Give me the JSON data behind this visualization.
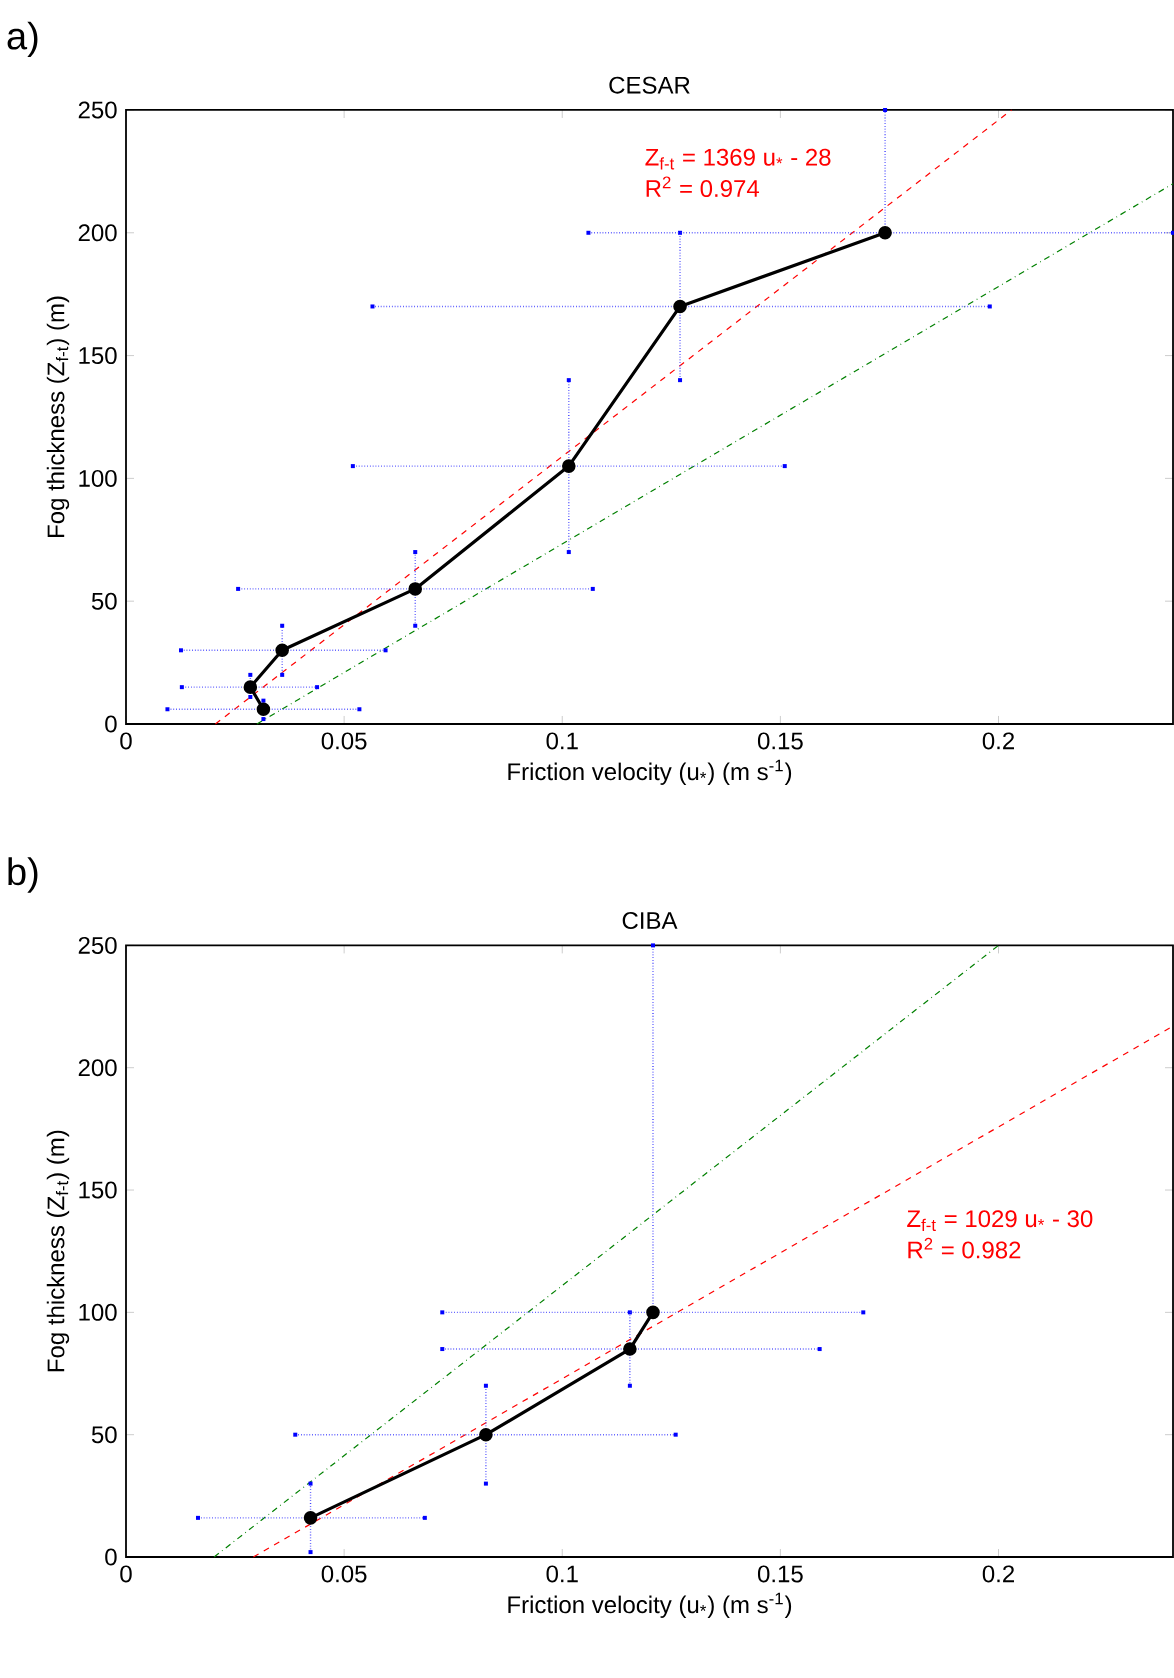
{
  "chart_data": [
    {
      "type": "line",
      "title": "CESAR",
      "xlabel": "Friction velocity (u$_{*}$) (m s$^{-1}$)",
      "ylabel": "Fog thickness (Z$_{f-t}$) (m)",
      "xlim": [
        0,
        0.24
      ],
      "ylim": [
        0,
        250
      ],
      "xticks": [
        0,
        0.05,
        0.1,
        0.15,
        0.2
      ],
      "yticks": [
        0,
        50,
        100,
        150,
        200,
        250
      ],
      "annotations": [
        "a)",
        "Z$_{f-t}$ = 1369 u$_{*}$ - 28",
        "R$^{2}$ = 0.974"
      ],
      "series": [
        {
          "color": "#ff0000",
          "line_style": "dashed",
          "marker": "none",
          "x": [
            0.0205,
            0.203
          ],
          "values": [
            0,
            250
          ]
        },
        {
          "color": "#008000",
          "line_style": "dashdot",
          "marker": "none",
          "x": [
            0.03,
            0.24
          ],
          "values": [
            0,
            220
          ]
        },
        {
          "color": "#000000",
          "line_style": "solid",
          "marker": "circle",
          "x": [
            0.0315,
            0.0285,
            0.0358,
            0.0663,
            0.1015,
            0.127,
            0.174
          ],
          "values": [
            6,
            15,
            30,
            55,
            105,
            170,
            200
          ],
          "xerrors": [
            [
              0.0095,
              0.0535
            ],
            [
              0.0128,
              0.0438
            ],
            [
              0.0126,
              0.0595
            ],
            [
              0.0257,
              0.107
            ],
            [
              0.052,
              0.151
            ],
            [
              0.0565,
              0.198
            ],
            [
              0.106,
              0.24
            ]
          ],
          "errors": [
            [
              2,
              9.5
            ],
            [
              11,
              20
            ],
            [
              20,
              40
            ],
            [
              40,
              70
            ],
            [
              70,
              140
            ],
            [
              140,
              200
            ],
            [
              200,
              250
            ]
          ]
        }
      ]
    },
    {
      "type": "line",
      "title": "CIBA",
      "xlabel": "Friction velocity (u$_{*}$) (m s$^{-1}$)",
      "ylabel": "Fog thickness (Z$_{f-t}$) (m)",
      "xlim": [
        0,
        0.24
      ],
      "ylim": [
        0,
        250
      ],
      "xticks": [
        0,
        0.05,
        0.1,
        0.15,
        0.2
      ],
      "yticks": [
        0,
        50,
        100,
        150,
        200,
        250
      ],
      "annotations": [
        "b)",
        "Z$_{f-t}$ = 1029 u$_{*}$ - 30",
        "R$^{2}$ = 0.982"
      ],
      "series": [
        {
          "color": "#ff0000",
          "line_style": "dashed",
          "marker": "none",
          "x": [
            0.0292,
            0.24
          ],
          "values": [
            0,
            217
          ]
        },
        {
          "color": "#008000",
          "line_style": "dashdot",
          "marker": "none",
          "x": [
            0.0202,
            0.2
          ],
          "values": [
            0,
            250
          ]
        },
        {
          "color": "#000000",
          "line_style": "solid",
          "marker": "circle",
          "x": [
            0.0423,
            0.0825,
            0.1155,
            0.1208
          ],
          "values": [
            16,
            50,
            85,
            100
          ],
          "xerrors": [
            [
              0.0165,
              0.0685
            ],
            [
              0.0388,
              0.126
            ],
            [
              0.0725,
              0.159
            ],
            [
              0.0725,
              0.169
            ]
          ],
          "errors": [
            [
              2,
              30
            ],
            [
              30,
              70
            ],
            [
              70,
              100
            ],
            [
              100,
              250
            ]
          ]
        }
      ]
    }
  ]
}
